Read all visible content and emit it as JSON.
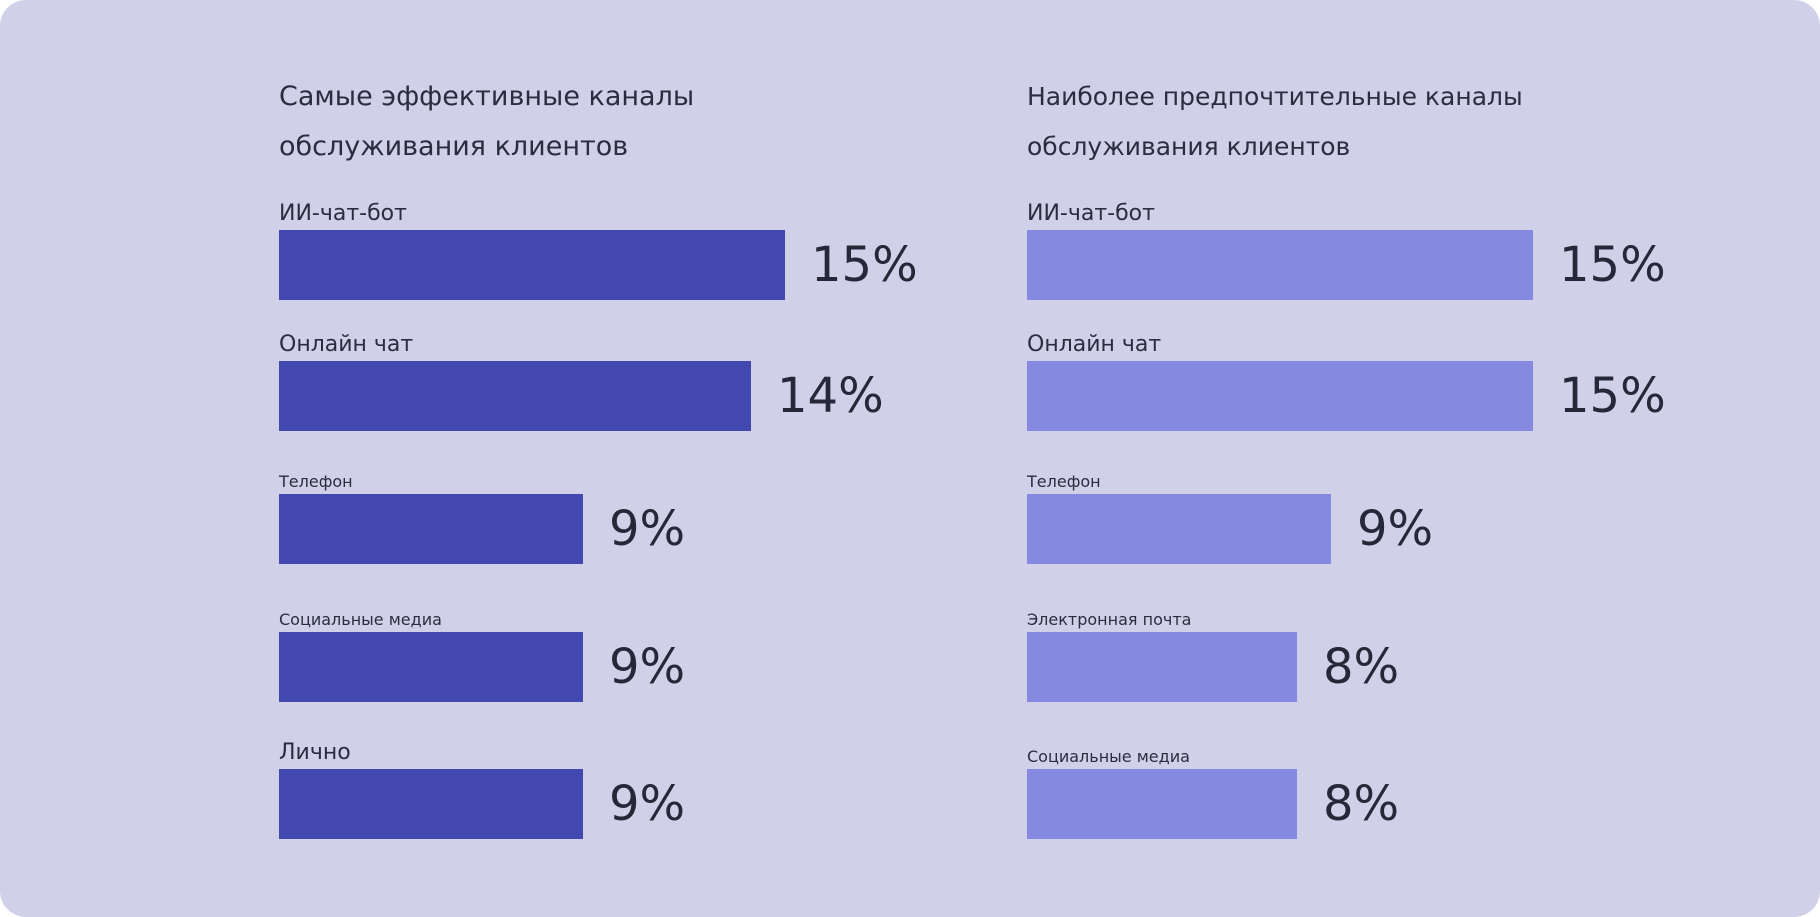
{
  "chart_data": [
    {
      "type": "bar",
      "orientation": "horizontal",
      "title": "Самые эффективные каналы обслуживания клиентов",
      "categories": [
        "ИИ-чат-бот",
        "Онлайн чат",
        "Телефон",
        "Социальные медиа",
        "Лично"
      ],
      "values": [
        15,
        14,
        9,
        9,
        9
      ],
      "value_labels": [
        "15%",
        "14%",
        "9%",
        "9%",
        "9%"
      ],
      "label_size": [
        "large",
        "large",
        "small",
        "small",
        "large"
      ],
      "unit": "%",
      "color": "#4348b0",
      "xlim": [
        0,
        15
      ],
      "grid": false,
      "legend": "none"
    },
    {
      "type": "bar",
      "orientation": "horizontal",
      "title": "Наиболее предпочтительные каналы обслуживания клиентов",
      "categories": [
        "ИИ-чат-бот",
        "Онлайн чат",
        "Телефон",
        "Электронная почта",
        "Социальные медиа"
      ],
      "values": [
        15,
        15,
        9,
        8,
        8
      ],
      "value_labels": [
        "15%",
        "15%",
        "9%",
        "8%",
        "8%"
      ],
      "label_size": [
        "large",
        "large",
        "small",
        "small",
        "small"
      ],
      "unit": "%",
      "color": "#8589e0",
      "xlim": [
        0,
        15
      ],
      "grid": false,
      "legend": "none"
    }
  ]
}
